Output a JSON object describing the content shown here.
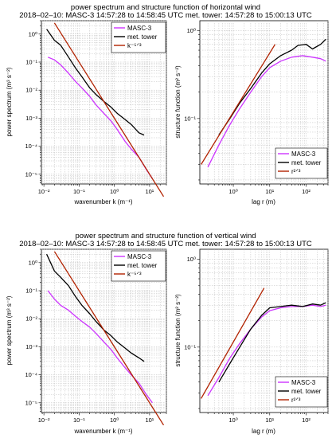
{
  "colors": {
    "masc": "#cc33ff",
    "tower": "#000000",
    "ref": "#b22200"
  },
  "chart_data": [
    {
      "id": "h_spec",
      "type": "line",
      "grid": true,
      "scale": "log-log",
      "title_lines": [
        "power spectrum and structure function of horizontal wind",
        "2018‒02‒10:  MASC‑3 14:57:28 to 14:58:45 UTC  met. tower: 14:57:28 to 15:00:13 UTC"
      ],
      "xlabel": "wavenumber k  (m⁻¹)",
      "ylabel": "power spectrum (m³ s⁻²)",
      "xlim": [
        0.0085,
        30
      ],
      "ylim": [
        4.5e-06,
        3
      ],
      "xticks": [
        0.01,
        0.1,
        1,
        10
      ],
      "xticklabels": [
        "10⁻²",
        "10⁻¹",
        "10⁰",
        "10¹"
      ],
      "yticks": [
        1e-05,
        0.0001,
        0.001,
        0.01,
        0.1,
        1
      ],
      "yticklabels": [
        "10⁻⁵",
        "10⁻⁴",
        "10⁻³",
        "10⁻²",
        "10⁻¹",
        "10⁰"
      ],
      "legend_position": "top-right",
      "legend": [
        "MASC‑3",
        "met. tower",
        "k⁻⁵ᐟ³"
      ],
      "series": [
        {
          "name": "MASC‑3",
          "color_key": "masc",
          "x": [
            0.013,
            0.02,
            0.03,
            0.05,
            0.08,
            0.12,
            0.2,
            0.3,
            0.5,
            0.8,
            1.2,
            2,
            3,
            5,
            8,
            12
          ],
          "y": [
            0.15,
            0.12,
            0.08,
            0.04,
            0.02,
            0.012,
            0.006,
            0.003,
            0.0015,
            0.0008,
            0.0004,
            0.00015,
            8e-05,
            4e-05,
            1.5e-05,
            7e-06
          ]
        },
        {
          "name": "met. tower",
          "color_key": "tower",
          "x": [
            0.012,
            0.02,
            0.03,
            0.05,
            0.08,
            0.12,
            0.2,
            0.3,
            0.5,
            0.8,
            1.2,
            2,
            3,
            5,
            7
          ],
          "y": [
            1.5,
            0.6,
            0.4,
            0.15,
            0.06,
            0.03,
            0.012,
            0.007,
            0.004,
            0.0025,
            0.0015,
            0.0009,
            0.0006,
            0.0003,
            0.00025
          ]
        },
        {
          "name": "k⁻⁵ᐟ³",
          "color_key": "ref",
          "x": [
            0.02,
            25
          ],
          "y": [
            2.5,
            1.6e-06
          ]
        }
      ]
    },
    {
      "id": "h_struct",
      "type": "line",
      "grid": true,
      "scale": "log-log",
      "xlabel": "lag r  (m)",
      "ylabel": "structure function (m² s⁻²)",
      "xlim": [
        0.12,
        400
      ],
      "ylim": [
        0.018,
        1.3
      ],
      "xticks": [
        1,
        10,
        100
      ],
      "xticklabels": [
        "10⁰",
        "10¹",
        "10²"
      ],
      "yticks": [
        0.1,
        1
      ],
      "yticklabels": [
        "10⁻¹",
        "10⁰"
      ],
      "legend_position": "bottom-right",
      "legend": [
        "MASC‑3",
        "met. tower",
        "r²ᐟ³"
      ],
      "series": [
        {
          "name": "MASC‑3",
          "color_key": "masc",
          "x": [
            0.2,
            0.4,
            0.8,
            1.5,
            3,
            6,
            10,
            20,
            40,
            80,
            150,
            250,
            350
          ],
          "y": [
            0.028,
            0.05,
            0.085,
            0.13,
            0.2,
            0.3,
            0.38,
            0.45,
            0.5,
            0.52,
            0.5,
            0.48,
            0.45
          ]
        },
        {
          "name": "met. tower",
          "color_key": "tower",
          "x": [
            0.4,
            0.8,
            1.5,
            3,
            6,
            10,
            20,
            40,
            60,
            100,
            150,
            250,
            350
          ],
          "y": [
            0.065,
            0.1,
            0.15,
            0.22,
            0.33,
            0.42,
            0.52,
            0.6,
            0.68,
            0.7,
            0.62,
            0.7,
            0.8
          ]
        },
        {
          "name": "r²ᐟ³",
          "color_key": "ref",
          "x": [
            0.13,
            14
          ],
          "y": [
            0.03,
            0.7
          ]
        }
      ]
    },
    {
      "id": "v_spec",
      "type": "line",
      "grid": true,
      "scale": "log-log",
      "title_lines": [
        "power spectrum and structure function of vertical wind",
        "2018‒02‒10:  MASC‑3 14:57:28 to 14:58:45 UTC  met. tower: 14:57:28 to 15:00:13 UTC"
      ],
      "xlabel": "wavenumber k  (m⁻¹)",
      "ylabel": "power spectrum (m³ s⁻²)",
      "xlim": [
        0.0085,
        30
      ],
      "ylim": [
        4.5e-06,
        3
      ],
      "xticks": [
        0.01,
        0.1,
        1,
        10
      ],
      "xticklabels": [
        "10⁻²",
        "10⁻¹",
        "10⁰",
        "10¹"
      ],
      "yticks": [
        1e-05,
        0.0001,
        0.001,
        0.01,
        0.1,
        1
      ],
      "yticklabels": [
        "10⁻⁵",
        "10⁻⁴",
        "10⁻³",
        "10⁻²",
        "10⁻¹",
        "10⁰"
      ],
      "legend_position": "top-right",
      "legend": [
        "MASC‑3",
        "met. tower",
        "k⁻⁵ᐟ³"
      ],
      "series": [
        {
          "name": "MASC‑3",
          "color_key": "masc",
          "x": [
            0.013,
            0.02,
            0.03,
            0.05,
            0.08,
            0.12,
            0.2,
            0.3,
            0.5,
            0.8,
            1.2,
            2,
            3,
            5,
            8,
            12
          ],
          "y": [
            0.1,
            0.05,
            0.03,
            0.02,
            0.012,
            0.008,
            0.005,
            0.003,
            0.0015,
            0.0008,
            0.0004,
            0.00018,
            0.0001,
            5e-05,
            2e-05,
            1e-05
          ]
        },
        {
          "name": "met. tower",
          "color_key": "tower",
          "x": [
            0.012,
            0.02,
            0.03,
            0.05,
            0.08,
            0.12,
            0.2,
            0.3,
            0.5,
            0.8,
            1.2,
            2,
            3,
            5,
            7
          ],
          "y": [
            2.0,
            0.5,
            0.3,
            0.15,
            0.06,
            0.03,
            0.015,
            0.008,
            0.004,
            0.0025,
            0.0015,
            0.0009,
            0.0006,
            0.0004,
            0.0003
          ]
        },
        {
          "name": "k⁻⁵ᐟ³",
          "color_key": "ref",
          "x": [
            0.02,
            25
          ],
          "y": [
            2.5,
            1.6e-06
          ]
        }
      ]
    },
    {
      "id": "v_struct",
      "type": "line",
      "grid": true,
      "scale": "log-log",
      "xlabel": "lag r  (m)",
      "ylabel": "structure function (m² s⁻²)",
      "xlim": [
        0.12,
        400
      ],
      "ylim": [
        0.018,
        1.3
      ],
      "xticks": [
        1,
        10,
        100
      ],
      "xticklabels": [
        "10⁰",
        "10¹",
        "10²"
      ],
      "yticks": [
        0.1,
        1
      ],
      "yticklabels": [
        "10⁻¹",
        "10⁰"
      ],
      "legend_position": "bottom-right",
      "legend": [
        "MASC‑3",
        "met. tower",
        "r²ᐟ³"
      ],
      "series": [
        {
          "name": "MASC‑3",
          "color_key": "masc",
          "x": [
            0.2,
            0.4,
            0.8,
            1.5,
            3,
            6,
            10,
            20,
            40,
            80,
            150,
            250,
            350
          ],
          "y": [
            0.028,
            0.045,
            0.075,
            0.11,
            0.16,
            0.22,
            0.26,
            0.28,
            0.29,
            0.29,
            0.3,
            0.29,
            0.3
          ]
        },
        {
          "name": "met. tower",
          "color_key": "tower",
          "x": [
            0.4,
            0.8,
            1.5,
            3,
            6,
            10,
            20,
            40,
            80,
            150,
            250,
            350
          ],
          "y": [
            0.04,
            0.065,
            0.1,
            0.16,
            0.23,
            0.28,
            0.29,
            0.3,
            0.29,
            0.31,
            0.3,
            0.32
          ]
        },
        {
          "name": "r²ᐟ³",
          "color_key": "ref",
          "x": [
            0.13,
            7
          ],
          "y": [
            0.026,
            0.47
          ]
        }
      ]
    }
  ]
}
